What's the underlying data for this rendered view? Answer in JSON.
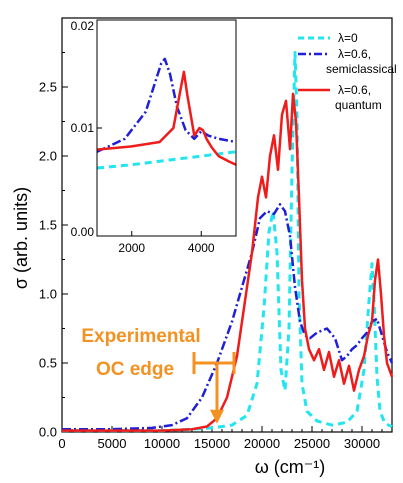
{
  "chart_data": [
    {
      "type": "line",
      "xlabel": "ω (cm⁻¹)",
      "ylabel": "σ (arb. units)",
      "xlim": [
        0,
        33000
      ],
      "ylim": [
        0,
        3.0
      ],
      "xticks": [
        0,
        5000,
        10000,
        15000,
        20000,
        25000,
        30000
      ],
      "xtick_labels": [
        "0",
        "5000",
        "10000",
        "15000",
        "20000",
        "25000",
        "30000"
      ],
      "yticks": [
        0.0,
        0.5,
        1.0,
        1.5,
        2.0,
        2.5
      ],
      "ytick_labels": [
        "0.0",
        "0.5",
        "1.0",
        "1.5",
        "2.0",
        "2.5"
      ],
      "legend_position": "top-right",
      "series": [
        {
          "name": "λ=0",
          "color": "#22e5f0",
          "style": "dashed",
          "x": [
            0,
            5000,
            10000,
            13000,
            15000,
            17000,
            18500,
            19500,
            20200,
            20700,
            21100,
            21500,
            21900,
            22300,
            22700,
            23000,
            23300,
            23500,
            23700,
            24000,
            24500,
            25500,
            27000,
            28500,
            29500,
            30200,
            30700,
            31000,
            31200,
            31500,
            31800,
            32300,
            33000
          ],
          "values": [
            0.01,
            0.01,
            0.01,
            0.02,
            0.03,
            0.05,
            0.12,
            0.35,
            0.9,
            1.45,
            1.6,
            1.3,
            0.45,
            0.3,
            0.75,
            1.9,
            2.75,
            2.3,
            1.0,
            0.35,
            0.15,
            0.08,
            0.05,
            0.07,
            0.15,
            0.45,
            0.95,
            1.22,
            0.95,
            0.4,
            0.15,
            0.06,
            0.04
          ]
        },
        {
          "name": "λ=0.6, semiclassical",
          "color": "#1f1fd6",
          "style": "dashdot",
          "x": [
            0,
            5000,
            9000,
            11000,
            12500,
            14000,
            15500,
            17000,
            18000,
            19000,
            19800,
            20500,
            21200,
            21800,
            22300,
            22800,
            23300,
            23800,
            24300,
            24800,
            25500,
            26500,
            27300,
            28000,
            28500,
            29000,
            29500,
            30000,
            30500,
            31000,
            31500,
            32000,
            32500,
            33000
          ],
          "values": [
            0.02,
            0.02,
            0.03,
            0.05,
            0.1,
            0.25,
            0.5,
            0.8,
            1.05,
            1.3,
            1.55,
            1.6,
            1.58,
            1.65,
            1.6,
            1.42,
            1.05,
            0.8,
            0.7,
            0.68,
            0.72,
            0.75,
            0.68,
            0.52,
            0.55,
            0.6,
            0.63,
            0.68,
            0.72,
            0.8,
            0.82,
            0.7,
            0.58,
            0.5
          ]
        },
        {
          "name": "λ=0.6, quantum",
          "color": "#ef1c1c",
          "style": "solid",
          "x": [
            0,
            5000,
            10000,
            13000,
            14500,
            15500,
            16500,
            17500,
            18300,
            19000,
            19600,
            20000,
            20400,
            20800,
            21200,
            21600,
            22000,
            22400,
            22800,
            23100,
            23400,
            23700,
            24000,
            24300,
            24700,
            25200,
            25700,
            26200,
            26700,
            27200,
            27700,
            28200,
            28700,
            29200,
            29700,
            30200,
            30600,
            31000,
            31300,
            31600,
            31900,
            32200,
            32500,
            33000
          ],
          "values": [
            0.01,
            0.01,
            0.01,
            0.02,
            0.04,
            0.1,
            0.25,
            0.55,
            0.95,
            1.3,
            1.7,
            1.85,
            1.7,
            2.0,
            2.15,
            1.9,
            2.3,
            2.4,
            2.05,
            2.45,
            2.25,
            1.7,
            1.1,
            0.75,
            0.6,
            0.52,
            0.6,
            0.45,
            0.58,
            0.4,
            0.52,
            0.35,
            0.48,
            0.3,
            0.45,
            0.55,
            0.7,
            0.8,
            1.1,
            1.25,
            1.0,
            0.7,
            0.5,
            0.4
          ]
        }
      ]
    },
    {
      "type": "line",
      "panel": "inset",
      "xlim": [
        1000,
        5000
      ],
      "ylim": [
        0.0,
        0.02
      ],
      "xticks": [
        2000,
        4000
      ],
      "xtick_labels": [
        "2000",
        "4000"
      ],
      "yticks": [
        0.0,
        0.01,
        0.02
      ],
      "ytick_labels": [
        "0.00",
        "0.01",
        "0.02"
      ],
      "series": [
        {
          "color": "#22e5f0",
          "style": "dashed",
          "x": [
            1000,
            2000,
            3000,
            4000,
            5000
          ],
          "values": [
            0.0063,
            0.0066,
            0.007,
            0.0074,
            0.0078
          ]
        },
        {
          "color": "#1f1fd6",
          "style": "dashdot",
          "x": [
            1000,
            1800,
            2400,
            2700,
            2850,
            2950,
            3100,
            3300,
            3550,
            3800,
            4000,
            4200,
            4500,
            5000
          ],
          "values": [
            0.0078,
            0.009,
            0.0115,
            0.0145,
            0.016,
            0.0164,
            0.015,
            0.012,
            0.0098,
            0.009,
            0.0097,
            0.0093,
            0.009,
            0.0087
          ]
        },
        {
          "color": "#ef1c1c",
          "style": "solid",
          "x": [
            1000,
            2000,
            2800,
            3200,
            3400,
            3500,
            3600,
            3800,
            3950,
            4050,
            4150,
            4300,
            4500,
            4800,
            5000
          ],
          "values": [
            0.008,
            0.0083,
            0.0087,
            0.01,
            0.0135,
            0.0152,
            0.013,
            0.0093,
            0.01,
            0.0098,
            0.009,
            0.0082,
            0.0074,
            0.0069,
            0.0066
          ]
        }
      ]
    }
  ],
  "annotation": {
    "line1": "Experimental",
    "line2": "OC edge",
    "color": "#f39222",
    "edge_value": 15500,
    "bar_range": [
      13200,
      17200
    ],
    "bar_level": 0.5
  }
}
